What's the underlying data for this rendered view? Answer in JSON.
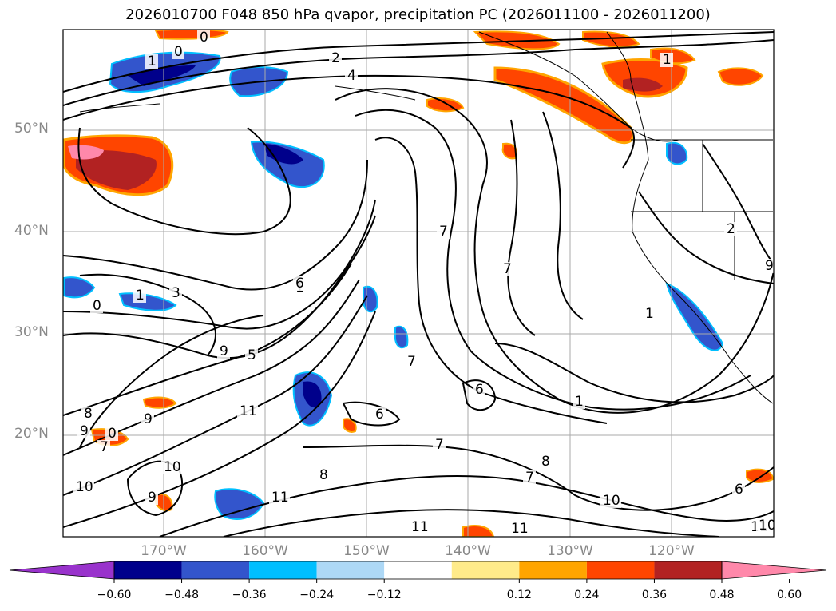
{
  "title": "2026010700 F048 850 hPa qvapor, precipitation PC (2026011100 - 2026011200)",
  "lat_labels": [
    "50°N",
    "40°N",
    "30°N",
    "20°N"
  ],
  "lon_labels": [
    "170°W",
    "160°W",
    "150°W",
    "140°W",
    "130°W",
    "120°W"
  ],
  "colorbar": {
    "colors": [
      "#9933cc",
      "#00008b",
      "#3355cc",
      "#00bfff",
      "#add8f6",
      "#ffffff",
      "#ffeb8a",
      "#ffa500",
      "#ff4500",
      "#b22222",
      "#ff88aa"
    ],
    "ticks": [
      "−0.60",
      "−0.48",
      "−0.36",
      "−0.24",
      "−0.12",
      "0.12",
      "0.24",
      "0.36",
      "0.48",
      "0.60"
    ]
  },
  "contour_labels": [
    "0",
    "1",
    "0",
    "4",
    "2",
    "1",
    "1",
    "3",
    "0",
    "1",
    "6",
    "7",
    "9",
    "5",
    "8",
    "9",
    "11",
    "6",
    "9",
    "0",
    "7",
    "7",
    "6",
    "7",
    "7",
    "8",
    "10",
    "11",
    "10",
    "9",
    "6",
    "8",
    "10",
    "11",
    "11",
    "11",
    "1",
    "7",
    "2",
    "1",
    "9",
    "10"
  ]
}
